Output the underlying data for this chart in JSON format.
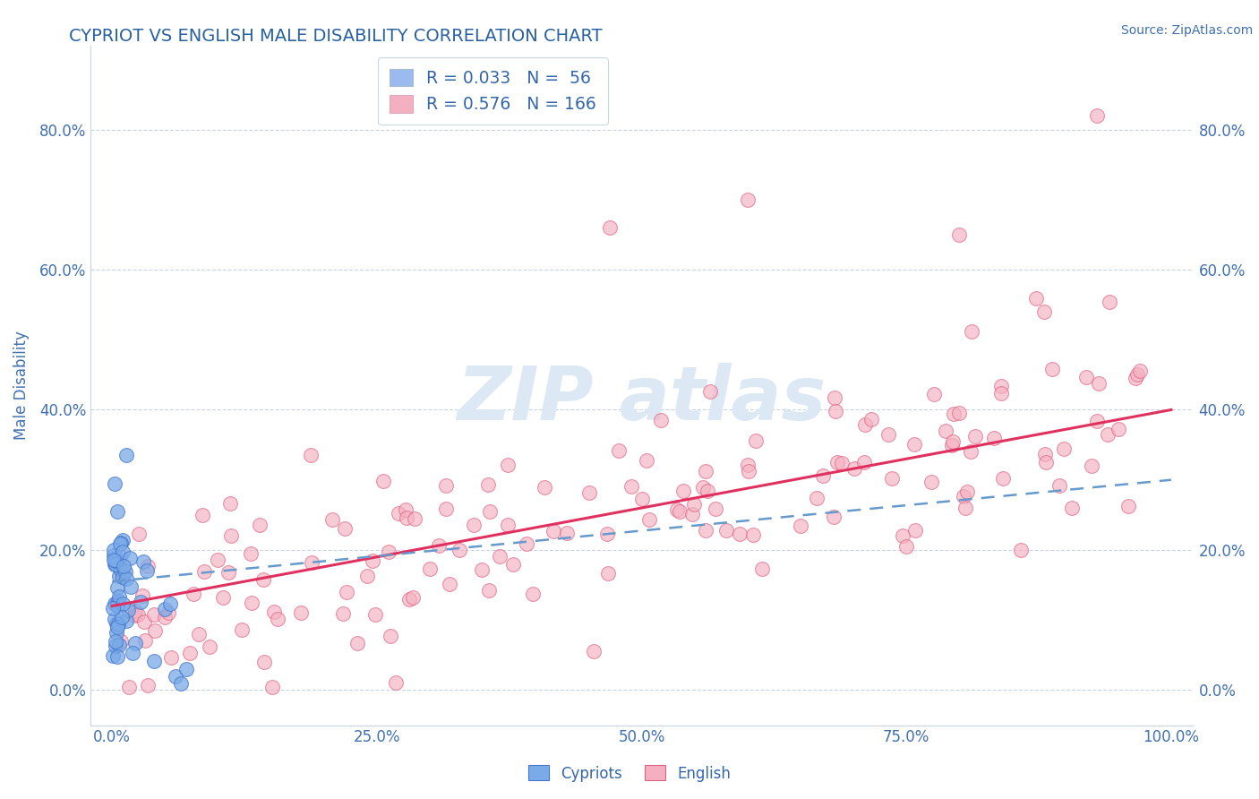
{
  "title": "CYPRIOT VS ENGLISH MALE DISABILITY CORRELATION CHART",
  "source": "Source: ZipAtlas.com",
  "ylabel": "Male Disability",
  "xlim": [
    -0.02,
    1.02
  ],
  "ylim": [
    -0.05,
    0.92
  ],
  "yticks": [
    0.0,
    0.2,
    0.4,
    0.6,
    0.8
  ],
  "ytick_labels": [
    "0.0%",
    "20.0%",
    "40.0%",
    "60.0%",
    "80.0%"
  ],
  "xticks": [
    0.0,
    0.25,
    0.5,
    0.75,
    1.0
  ],
  "xtick_labels": [
    "0.0%",
    "25.0%",
    "50.0%",
    "75.0%",
    "100.0%"
  ],
  "title_color": "#2860a0",
  "axis_label_color": "#4070b0",
  "tick_color": "#4070b0",
  "grid_color": "#c8d4e0",
  "cypriot_face_color": "#7aaae8",
  "cypriot_edge_color": "#4477cc",
  "english_face_color": "#f4b0c0",
  "english_edge_color": "#e06080",
  "cypriot_trend_color": "#6699cc",
  "english_trend_color": "#e03060",
  "legend_label_color": "#3366aa",
  "legend_entry_1": "R = 0.033   N =  56",
  "legend_entry_2": "R = 0.576   N = 166",
  "legend_color_1": "#99bbee",
  "legend_color_2": "#f4b0c0",
  "bottom_legend_1": "Cypriots",
  "bottom_legend_2": "English",
  "watermark_color": "#dce8f4",
  "cypriot_N": 56,
  "english_N": 166,
  "cypriot_R": 0.033,
  "english_R": 0.576,
  "eng_trend_x0": 0.0,
  "eng_trend_y0": 0.12,
  "eng_trend_x1": 1.0,
  "eng_trend_y1": 0.4,
  "cyp_trend_x0": 0.0,
  "cyp_trend_y0": 0.155,
  "cyp_trend_x1": 1.0,
  "cyp_trend_y1": 0.3
}
